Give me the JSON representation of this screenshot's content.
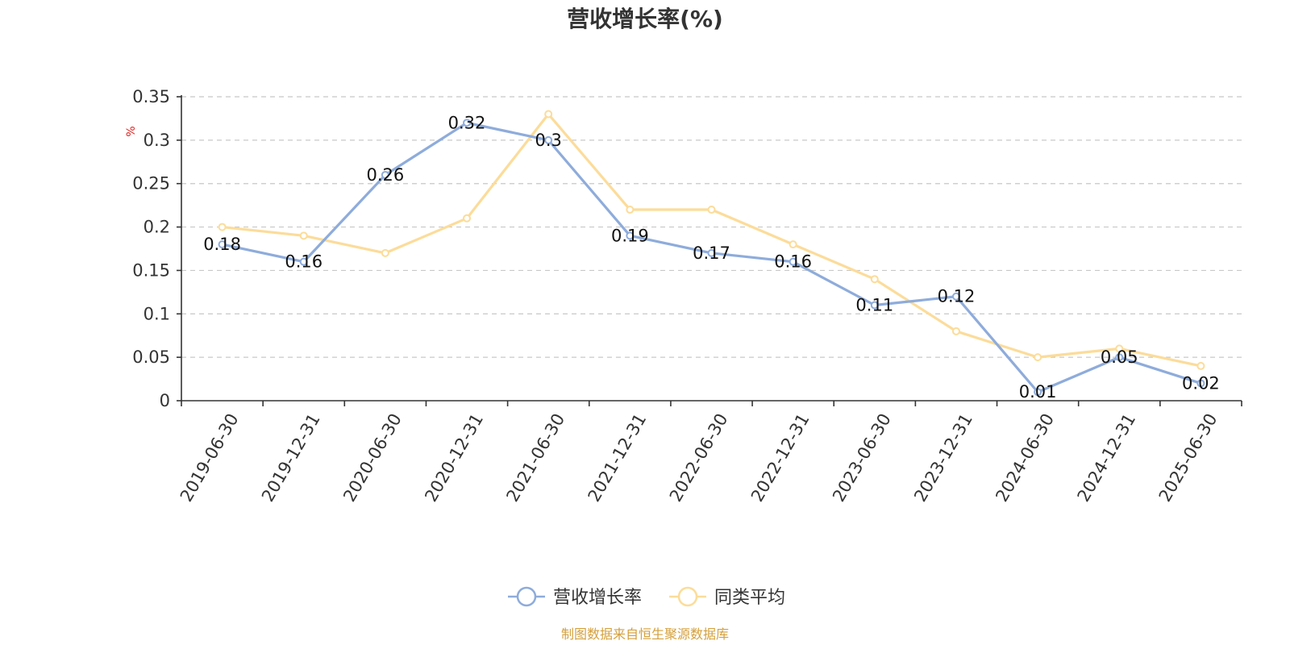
{
  "chart_data": {
    "type": "line",
    "title": "营收增长率(%)",
    "ylabel": "%",
    "xlabel": "",
    "ylim": [
      0,
      0.35
    ],
    "yticks": [
      "0",
      "0.05",
      "0.1",
      "0.15",
      "0.2",
      "0.25",
      "0.3",
      "0.35"
    ],
    "grid": true,
    "legend_position": "bottom",
    "categories": [
      "2019-06-30",
      "2019-12-31",
      "2020-06-30",
      "2020-12-31",
      "2021-06-30",
      "2021-12-31",
      "2022-06-30",
      "2022-12-31",
      "2023-06-30",
      "2023-12-31",
      "2024-06-30",
      "2024-12-31",
      "2025-06-30"
    ],
    "series": [
      {
        "name": "营收增长率",
        "color": "#8eacdb",
        "values": [
          0.18,
          0.16,
          0.26,
          0.32,
          0.3,
          0.19,
          0.17,
          0.16,
          0.11,
          0.12,
          0.01,
          0.05,
          0.02
        ],
        "labels": [
          "0.18",
          "0.16",
          "0.26",
          "0.32",
          "0.3",
          "0.19",
          "0.17",
          "0.16",
          "0.11",
          "0.12",
          "0.01",
          "0.05",
          "0.02"
        ]
      },
      {
        "name": "同类平均",
        "color": "#fcdc9a",
        "values": [
          0.2,
          0.19,
          0.17,
          0.21,
          0.33,
          0.22,
          0.22,
          0.18,
          0.14,
          0.08,
          0.05,
          0.06,
          0.04
        ]
      }
    ],
    "ylabel_color": "#e02020",
    "source": "制图数据来自恒生聚源数据库",
    "source_color": "#d4a03c"
  }
}
